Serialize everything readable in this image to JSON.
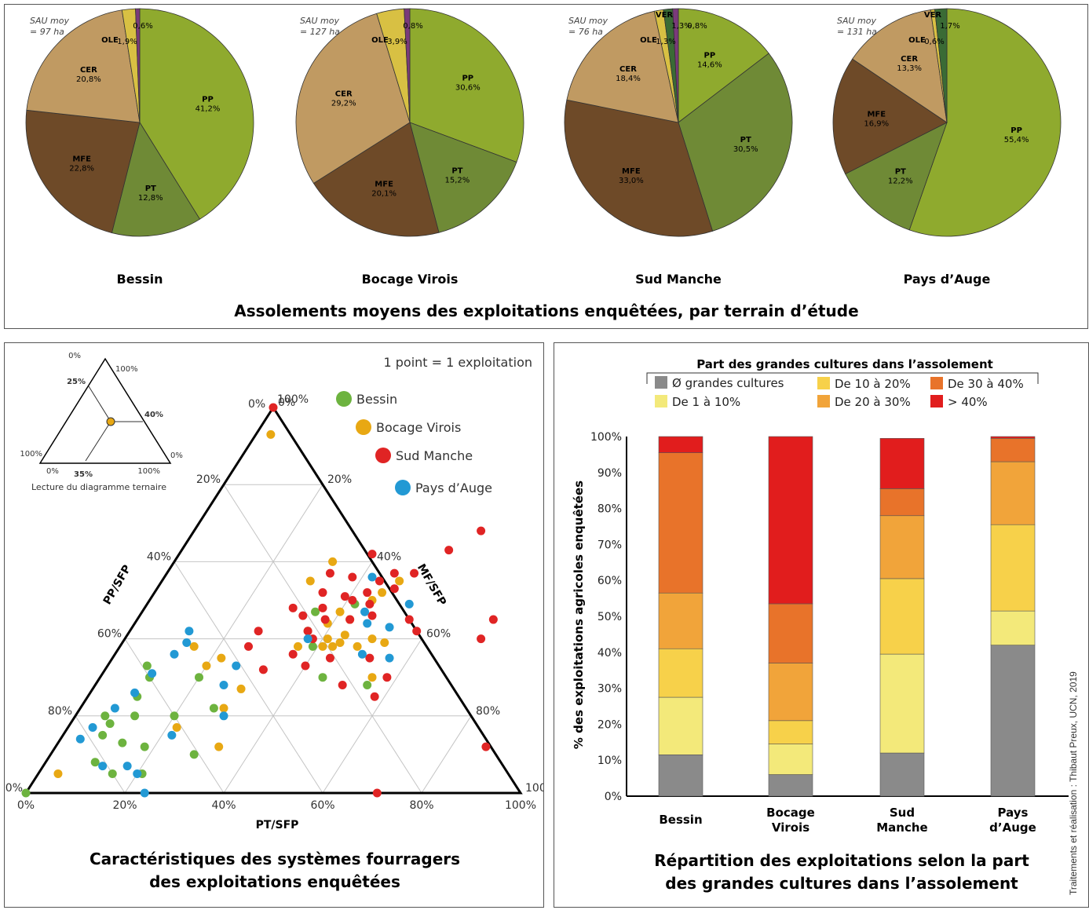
{
  "pies": {
    "title": "Assolements moyens des exploitations enquêtées, par terrain d’étude",
    "colors": {
      "PP": "#8faa2e",
      "PT": "#6f8a36",
      "MFE": "#6e4a28",
      "CER": "#c09a62",
      "OLE": "#d8c043",
      "VER": "#3a6b35",
      "OTHER": "#7a3a7a"
    },
    "charts": [
      {
        "name": "Bessin",
        "sau": [
          "SAU moy",
          "= 97 ha"
        ],
        "slices": [
          {
            "key": "PP",
            "label": "PP",
            "pct": "41,2%",
            "value": 41.2
          },
          {
            "key": "PT",
            "label": "PT",
            "pct": "12,8%",
            "value": 12.8
          },
          {
            "key": "MFE",
            "label": "MFE",
            "pct": "22,8%",
            "value": 22.8
          },
          {
            "key": "CER",
            "label": "CER",
            "pct": "20,8%",
            "value": 20.8
          },
          {
            "key": "OLE",
            "label": "OLE",
            "pct": "1,9%",
            "value": 1.9
          },
          {
            "key": "OTHER",
            "label": "",
            "pct": "0,6%",
            "value": 0.6
          }
        ]
      },
      {
        "name": "Bocage Virois",
        "sau": [
          "SAU moy",
          "= 127 ha"
        ],
        "slices": [
          {
            "key": "PP",
            "label": "PP",
            "pct": "30,6%",
            "value": 30.6
          },
          {
            "key": "PT",
            "label": "PT",
            "pct": "15,2%",
            "value": 15.2
          },
          {
            "key": "MFE",
            "label": "MFE",
            "pct": "20,1%",
            "value": 20.1
          },
          {
            "key": "CER",
            "label": "CER",
            "pct": "29,2%",
            "value": 29.2
          },
          {
            "key": "OLE",
            "label": "OLE",
            "pct": "3,9%",
            "value": 3.9
          },
          {
            "key": "OTHER",
            "label": "",
            "pct": "0,8%",
            "value": 0.8
          }
        ]
      },
      {
        "name": "Sud Manche",
        "sau": [
          "SAU moy",
          "= 76 ha"
        ],
        "slices": [
          {
            "key": "PP",
            "label": "PP",
            "pct": "14,6%",
            "value": 14.6
          },
          {
            "key": "PT",
            "label": "PT",
            "pct": "30,5%",
            "value": 30.5
          },
          {
            "key": "MFE",
            "label": "MFE",
            "pct": "33,0%",
            "value": 33.0
          },
          {
            "key": "CER",
            "label": "CER",
            "pct": "18,4%",
            "value": 18.4
          },
          {
            "key": "OLE",
            "label": "OLE",
            "pct": "1,3%",
            "value": 1.3
          },
          {
            "key": "VER",
            "label": "VER",
            "pct": "1,3%",
            "value": 1.3
          },
          {
            "key": "OTHER",
            "label": "",
            "pct": "0,8%",
            "value": 0.8
          }
        ]
      },
      {
        "name": "Pays d’Auge",
        "sau": [
          "SAU moy",
          "= 131 ha"
        ],
        "slices": [
          {
            "key": "PP",
            "label": "PP",
            "pct": "55,4%",
            "value": 55.4
          },
          {
            "key": "PT",
            "label": "PT",
            "pct": "12,2%",
            "value": 12.2
          },
          {
            "key": "MFE",
            "label": "MFE",
            "pct": "16,9%",
            "value": 16.9
          },
          {
            "key": "CER",
            "label": "CER",
            "pct": "13,3%",
            "value": 13.3
          },
          {
            "key": "OLE",
            "label": "OLE",
            "pct": "0,6%",
            "value": 0.6
          },
          {
            "key": "VER",
            "label": "VER",
            "pct": "1,7%",
            "value": 1.7
          }
        ]
      }
    ]
  },
  "ternary": {
    "title_lines": [
      "Caractéristiques des systèmes fourragers",
      "des exploitations enquêtées"
    ],
    "note": "1 point = 1 exploitation",
    "axis_left": "PP/SFP",
    "axis_right": "MF/SFP",
    "axis_bottom": "PT/SFP",
    "bottom_ticks": [
      "0%",
      "20%",
      "40%",
      "60%",
      "80%",
      "100%"
    ],
    "left_ticks": [
      "100%",
      "80%",
      "60%",
      "40%",
      "20%",
      "0%"
    ],
    "right_ticks": [
      "100%",
      "80%",
      "60%",
      "40%",
      "20%",
      "0%"
    ],
    "legend": [
      {
        "name": "Bessin",
        "color": "#6db33f"
      },
      {
        "name": "Bocage Virois",
        "color": "#e8a813"
      },
      {
        "name": "Sud Manche",
        "color": "#e02424"
      },
      {
        "name": "Pays d’Auge",
        "color": "#2299d4"
      }
    ],
    "inset": {
      "caption": "Lecture du diagramme ternaire",
      "labels": [
        "0%",
        "100%",
        "25%",
        "40%",
        "100%",
        "0%",
        "0%",
        "35%",
        "100%"
      ]
    },
    "points": [
      {
        "g": "Bessin",
        "pt": 0.0,
        "mf": 0.0
      },
      {
        "g": "Bessin",
        "pt": 0.15,
        "mf": 0.05
      },
      {
        "g": "Bessin",
        "pt": 0.13,
        "mf": 0.13
      },
      {
        "g": "Bessin",
        "pt": 0.12,
        "mf": 0.2
      },
      {
        "g": "Bessin",
        "pt": 0.1,
        "mf": 0.25
      },
      {
        "g": "Bessin",
        "pt": 0.1,
        "mf": 0.3
      },
      {
        "g": "Bessin",
        "pt": 0.08,
        "mf": 0.33
      },
      {
        "g": "Bessin",
        "pt": 0.06,
        "mf": 0.2
      },
      {
        "g": "Bessin",
        "pt": 0.08,
        "mf": 0.15
      },
      {
        "g": "Bessin",
        "pt": 0.1,
        "mf": 0.08
      },
      {
        "g": "Bessin",
        "pt": 0.2,
        "mf": 0.2
      },
      {
        "g": "Bessin",
        "pt": 0.2,
        "mf": 0.3
      },
      {
        "g": "Bessin",
        "pt": 0.18,
        "mf": 0.12
      },
      {
        "g": "Bessin",
        "pt": 0.21,
        "mf": 0.05
      },
      {
        "g": "Bessin",
        "pt": 0.29,
        "mf": 0.1
      },
      {
        "g": "Bessin",
        "pt": 0.08,
        "mf": 0.18
      },
      {
        "g": "Bessin",
        "pt": 0.39,
        "mf": 0.38
      },
      {
        "g": "Bessin",
        "pt": 0.36,
        "mf": 0.42
      },
      {
        "g": "Bessin",
        "pt": 0.42,
        "mf": 0.49
      },
      {
        "g": "Bessin",
        "pt": 0.45,
        "mf": 0.3
      },
      {
        "g": "Bessin",
        "pt": 0.35,
        "mf": 0.47
      },
      {
        "g": "Bessin",
        "pt": 0.55,
        "mf": 0.28
      },
      {
        "g": "Bessin",
        "pt": 0.27,
        "mf": 0.22
      },
      {
        "g": "Bocage Virois",
        "pt": 0.03,
        "mf": 0.93
      },
      {
        "g": "Bocage Virois",
        "pt": 0.04,
        "mf": 0.05
      },
      {
        "g": "Bocage Virois",
        "pt": 0.15,
        "mf": 0.38
      },
      {
        "g": "Bocage Virois",
        "pt": 0.2,
        "mf": 0.33
      },
      {
        "g": "Bocage Virois",
        "pt": 0.22,
        "mf": 0.35
      },
      {
        "g": "Bocage Virois",
        "pt": 0.29,
        "mf": 0.22
      },
      {
        "g": "Bocage Virois",
        "pt": 0.33,
        "mf": 0.12
      },
      {
        "g": "Bocage Virois",
        "pt": 0.32,
        "mf": 0.6
      },
      {
        "g": "Bocage Virois",
        "pt": 0.3,
        "mf": 0.27
      },
      {
        "g": "Bocage Virois",
        "pt": 0.36,
        "mf": 0.38
      },
      {
        "g": "Bocage Virois",
        "pt": 0.39,
        "mf": 0.44
      },
      {
        "g": "Bocage Virois",
        "pt": 0.41,
        "mf": 0.38
      },
      {
        "g": "Bocage Virois",
        "pt": 0.43,
        "mf": 0.38
      },
      {
        "g": "Bocage Virois",
        "pt": 0.44,
        "mf": 0.39
      },
      {
        "g": "Bocage Virois",
        "pt": 0.41,
        "mf": 0.4
      },
      {
        "g": "Bocage Virois",
        "pt": 0.43,
        "mf": 0.45
      },
      {
        "g": "Bocage Virois",
        "pt": 0.45,
        "mf": 0.5
      },
      {
        "g": "Bocage Virois",
        "pt": 0.46,
        "mf": 0.52
      },
      {
        "g": "Bocage Virois",
        "pt": 0.48,
        "mf": 0.55
      },
      {
        "g": "Bocage Virois",
        "pt": 0.4,
        "mf": 0.47
      },
      {
        "g": "Bocage Virois",
        "pt": 0.5,
        "mf": 0.4
      },
      {
        "g": "Bocage Virois",
        "pt": 0.53,
        "mf": 0.39
      },
      {
        "g": "Bocage Virois",
        "pt": 0.55,
        "mf": 0.3
      },
      {
        "g": "Bocage Virois",
        "pt": 0.3,
        "mf": 0.55
      },
      {
        "g": "Bocage Virois",
        "pt": 0.22,
        "mf": 0.17
      },
      {
        "g": "Bocage Virois",
        "pt": 0.44,
        "mf": 0.41
      },
      {
        "g": "Bocage Virois",
        "pt": 0.48,
        "mf": 0.38
      },
      {
        "g": "Sud Manche",
        "pt": 0.0,
        "mf": 1.0
      },
      {
        "g": "Sud Manche",
        "pt": 0.71,
        "mf": 0.0
      },
      {
        "g": "Sud Manche",
        "pt": 0.87,
        "mf": 0.12
      },
      {
        "g": "Sud Manche",
        "pt": 0.46,
        "mf": 0.57
      },
      {
        "g": "Sud Manche",
        "pt": 0.38,
        "mf": 0.56
      },
      {
        "g": "Sud Manche",
        "pt": 0.44,
        "mf": 0.55
      },
      {
        "g": "Sud Manche",
        "pt": 0.48,
        "mf": 0.53
      },
      {
        "g": "Sud Manche",
        "pt": 0.34,
        "mf": 0.52
      },
      {
        "g": "Sud Manche",
        "pt": 0.39,
        "mf": 0.51
      },
      {
        "g": "Sud Manche",
        "pt": 0.45,
        "mf": 0.49
      },
      {
        "g": "Sud Manche",
        "pt": 0.41,
        "mf": 0.5
      },
      {
        "g": "Sud Manche",
        "pt": 0.36,
        "mf": 0.48
      },
      {
        "g": "Sud Manche",
        "pt": 0.33,
        "mf": 0.46
      },
      {
        "g": "Sud Manche",
        "pt": 0.47,
        "mf": 0.46
      },
      {
        "g": "Sud Manche",
        "pt": 0.43,
        "mf": 0.45
      },
      {
        "g": "Sud Manche",
        "pt": 0.36,
        "mf": 0.42
      },
      {
        "g": "Sud Manche",
        "pt": 0.38,
        "mf": 0.4
      },
      {
        "g": "Sud Manche",
        "pt": 0.36,
        "mf": 0.36
      },
      {
        "g": "Sud Manche",
        "pt": 0.32,
        "mf": 0.32
      },
      {
        "g": "Sud Manche",
        "pt": 0.4,
        "mf": 0.33
      },
      {
        "g": "Sud Manche",
        "pt": 0.44,
        "mf": 0.35
      },
      {
        "g": "Sud Manche",
        "pt": 0.52,
        "mf": 0.35
      },
      {
        "g": "Sud Manche",
        "pt": 0.5,
        "mf": 0.28
      },
      {
        "g": "Sud Manche",
        "pt": 0.58,
        "mf": 0.25
      },
      {
        "g": "Sud Manche",
        "pt": 0.72,
        "mf": 0.4
      },
      {
        "g": "Sud Manche",
        "pt": 0.72,
        "mf": 0.45
      },
      {
        "g": "Sud Manche",
        "pt": 0.54,
        "mf": 0.63
      },
      {
        "g": "Sud Manche",
        "pt": 0.58,
        "mf": 0.42
      },
      {
        "g": "Sud Manche",
        "pt": 0.55,
        "mf": 0.45
      },
      {
        "g": "Sud Manche",
        "pt": 0.26,
        "mf": 0.38
      },
      {
        "g": "Sud Manche",
        "pt": 0.26,
        "mf": 0.42
      },
      {
        "g": "Sud Manche",
        "pt": 0.3,
        "mf": 0.48
      },
      {
        "g": "Sud Manche",
        "pt": 0.33,
        "mf": 0.57
      },
      {
        "g": "Sud Manche",
        "pt": 0.39,
        "mf": 0.62
      },
      {
        "g": "Sud Manche",
        "pt": 0.58,
        "mf": 0.68
      },
      {
        "g": "Sud Manche",
        "pt": 0.58,
        "mf": 0.3
      },
      {
        "g": "Sud Manche",
        "pt": 0.5,
        "mf": 0.57
      },
      {
        "g": "Sud Manche",
        "pt": 0.38,
        "mf": 0.45
      },
      {
        "g": "Sud Manche",
        "pt": 0.43,
        "mf": 0.52
      },
      {
        "g": "Pays d’Auge",
        "pt": 0.24,
        "mf": 0.0
      },
      {
        "g": "Pays d’Auge",
        "pt": 0.2,
        "mf": 0.05
      },
      {
        "g": "Pays d’Auge",
        "pt": 0.17,
        "mf": 0.07
      },
      {
        "g": "Pays d’Auge",
        "pt": 0.12,
        "mf": 0.07
      },
      {
        "g": "Pays d’Auge",
        "pt": 0.04,
        "mf": 0.14
      },
      {
        "g": "Pays d’Auge",
        "pt": 0.05,
        "mf": 0.17
      },
      {
        "g": "Pays d’Auge",
        "pt": 0.07,
        "mf": 0.22
      },
      {
        "g": "Pays d’Auge",
        "pt": 0.09,
        "mf": 0.26
      },
      {
        "g": "Pays d’Auge",
        "pt": 0.1,
        "mf": 0.31
      },
      {
        "g": "Pays d’Auge",
        "pt": 0.12,
        "mf": 0.36
      },
      {
        "g": "Pays d’Auge",
        "pt": 0.13,
        "mf": 0.39
      },
      {
        "g": "Pays d’Auge",
        "pt": 0.12,
        "mf": 0.42
      },
      {
        "g": "Pays d’Auge",
        "pt": 0.22,
        "mf": 0.15
      },
      {
        "g": "Pays d’Auge",
        "pt": 0.26,
        "mf": 0.28
      },
      {
        "g": "Pays d’Auge",
        "pt": 0.26,
        "mf": 0.33
      },
      {
        "g": "Pays d’Auge",
        "pt": 0.3,
        "mf": 0.2
      },
      {
        "g": "Pays d’Auge",
        "pt": 0.37,
        "mf": 0.4
      },
      {
        "g": "Pays d’Auge",
        "pt": 0.47,
        "mf": 0.44
      },
      {
        "g": "Pays d’Auge",
        "pt": 0.45,
        "mf": 0.47
      },
      {
        "g": "Pays d’Auge",
        "pt": 0.52,
        "mf": 0.43
      },
      {
        "g": "Pays d’Auge",
        "pt": 0.5,
        "mf": 0.36
      },
      {
        "g": "Pays d’Auge",
        "pt": 0.53,
        "mf": 0.49
      },
      {
        "g": "Pays d’Auge",
        "pt": 0.56,
        "mf": 0.35
      },
      {
        "g": "Pays d’Auge",
        "pt": 0.42,
        "mf": 0.56
      }
    ]
  },
  "bars": {
    "title_lines": [
      "Répartition des exploitations selon la part",
      "des grandes cultures dans l’assolement"
    ],
    "legend_title": "Part des grandes cultures dans l’assolement",
    "ylabel": "% des exploitations agricoles enquêtées",
    "yticks": [
      "0%",
      "10%",
      "20%",
      "30%",
      "40%",
      "50%",
      "60%",
      "70%",
      "80%",
      "90%",
      "100%"
    ],
    "categories": [
      [
        "Bessin"
      ],
      [
        "Bocage",
        "Virois"
      ],
      [
        "Sud",
        "Manche"
      ],
      [
        "Pays",
        "d’Auge"
      ]
    ],
    "series": [
      {
        "name": "Ø grandes cultures",
        "color": "#8a8a8a",
        "values": [
          11.5,
          6,
          12,
          42
        ]
      },
      {
        "name": "De 1 à 10%",
        "color": "#f3e97a",
        "values": [
          16,
          8.5,
          27.5,
          9.5
        ]
      },
      {
        "name": "De 10 à 20%",
        "color": "#f7d14a",
        "values": [
          13.5,
          6.5,
          21,
          24
        ]
      },
      {
        "name": "De 20 à 30%",
        "color": "#f1a43a",
        "values": [
          15.5,
          16,
          17.5,
          17.5
        ]
      },
      {
        "name": "De 30 à 40%",
        "color": "#e8732a",
        "values": [
          39,
          16.5,
          7.5,
          6.5
        ]
      },
      {
        "name": "> 40%",
        "color": "#e11d1d",
        "values": [
          4.5,
          46.5,
          14,
          0.5
        ]
      }
    ]
  },
  "credit": "Traitements et réalisation : Thibaut Preux, UCN, 2019"
}
